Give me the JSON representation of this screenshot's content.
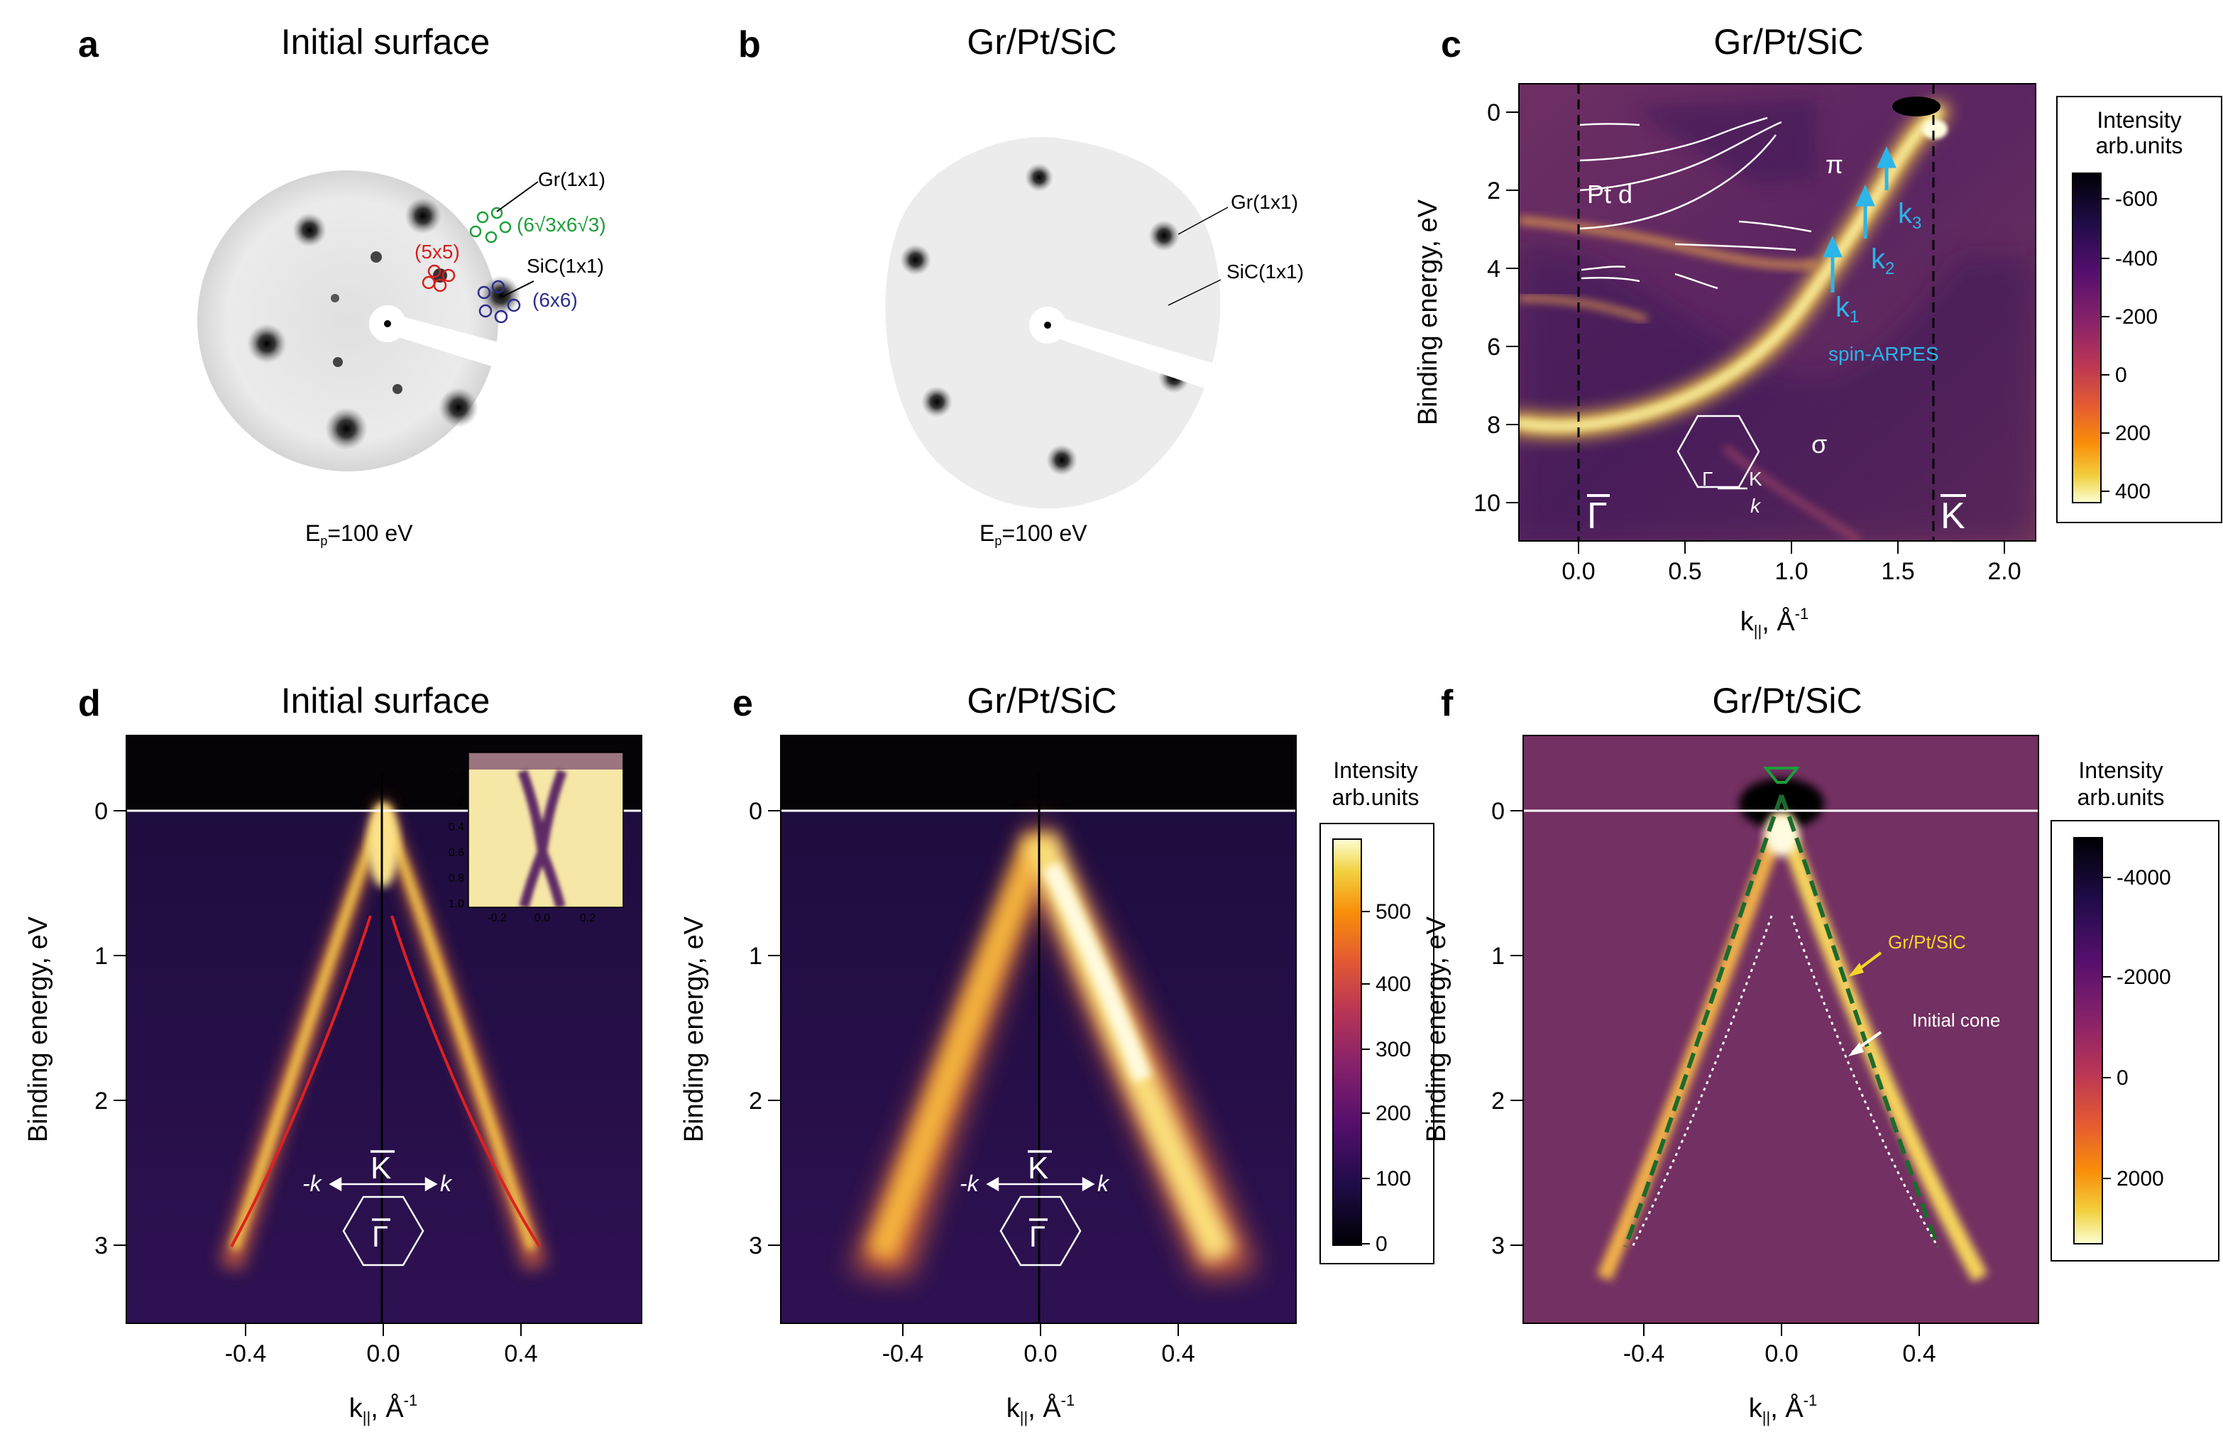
{
  "panels": {
    "a": {
      "letter": "a",
      "title": "Initial surface",
      "energy_main": "E",
      "energy_sub": "p",
      "energy_value": "=100 eV",
      "labels": {
        "gr": "Gr(1x1)",
        "sic": "SiC(1x1)",
        "r5x5": "(5x5)",
        "r6root3": "(6√3x6√3)",
        "r6x6": "(6x6)"
      },
      "colors": {
        "r5x5": "#d42020",
        "r6root3": "#1f9e3a",
        "r6x6": "#2c2c8c"
      }
    },
    "b": {
      "letter": "b",
      "title": "Gr/Pt/SiC",
      "energy_main": "E",
      "energy_sub": "p",
      "energy_value": "=100 eV",
      "labels": {
        "gr": "Gr(1x1)",
        "sic": "SiC(1x1)"
      }
    },
    "c": {
      "letter": "c",
      "title": "Gr/Pt/SiC",
      "ylabel": "Binding energy, eV",
      "xlabel_main": "k",
      "xlabel_sub": "||",
      "xlabel_tail": ", Å",
      "xlabel_sup": "-1",
      "yticks": [
        "0",
        "2",
        "4",
        "6",
        "8",
        "10"
      ],
      "xticks": [
        "0.0",
        "0.5",
        "1.0",
        "1.5",
        "2.0"
      ],
      "annotations": {
        "ptd": "Pt d",
        "pi": "π",
        "sigma": "σ",
        "k": "k",
        "k1": "1",
        "k2": "2",
        "k3": "3",
        "spin": "spin-ARPES",
        "gamma": "Γ",
        "kbar": "K",
        "inset_gamma": "Γ",
        "inset_k": "K",
        "inset_kk": "k"
      },
      "colorbar": {
        "title1": "Intensity",
        "title2": "arb.units",
        "ticks": [
          "-600",
          "-400",
          "-200",
          "0",
          "200",
          "400"
        ]
      }
    },
    "d": {
      "letter": "d",
      "title": "Initial surface",
      "ylabel": "Binding energy, eV",
      "xlabel_main": "k",
      "xlabel_sub": "||",
      "xlabel_tail": ", Å",
      "xlabel_sup": "-1",
      "yticks": [
        "0",
        "1",
        "2",
        "3"
      ],
      "xticks": [
        "-0.4",
        "0.0",
        "0.4"
      ],
      "inset_yticks": [
        "0.0",
        "0.2",
        "0.4",
        "0.6",
        "0.8",
        "1.0"
      ],
      "inset_xticks": [
        "-0.2",
        "0.0",
        "0.2"
      ],
      "bz": {
        "kbar": "K",
        "gamma": "Γ",
        "minus_k": "-k",
        "plus_k": "k"
      }
    },
    "e": {
      "letter": "e",
      "title": "Gr/Pt/SiC",
      "ylabel": "Binding energy, eV",
      "xlabel_main": "k",
      "xlabel_sub": "||",
      "xlabel_tail": ", Å",
      "xlabel_sup": "-1",
      "yticks": [
        "0",
        "1",
        "2",
        "3"
      ],
      "xticks": [
        "-0.4",
        "0.0",
        "0.4"
      ],
      "bz": {
        "kbar": "K",
        "gamma": "Γ",
        "minus_k": "-k",
        "plus_k": "k"
      },
      "colorbar": {
        "title1": "Intensity",
        "title2": "arb.units",
        "ticks": [
          "500",
          "400",
          "300",
          "200",
          "100",
          "0"
        ]
      }
    },
    "f": {
      "letter": "f",
      "title": "Gr/Pt/SiC",
      "ylabel": "Binding energy, eV",
      "xlabel_main": "k",
      "xlabel_sub": "||",
      "xlabel_tail": ", Å",
      "xlabel_sup": "-1",
      "yticks": [
        "0",
        "1",
        "2",
        "3"
      ],
      "xticks": [
        "-0.4",
        "0.0",
        "0.4"
      ],
      "annotations": {
        "grptsic": "Gr/Pt/SiC",
        "initial": "Initial cone"
      },
      "colorbar": {
        "title1": "Intensity",
        "title2": "arb.units",
        "ticks": [
          "-4000",
          "-2000",
          "0",
          "2000"
        ]
      }
    }
  }
}
